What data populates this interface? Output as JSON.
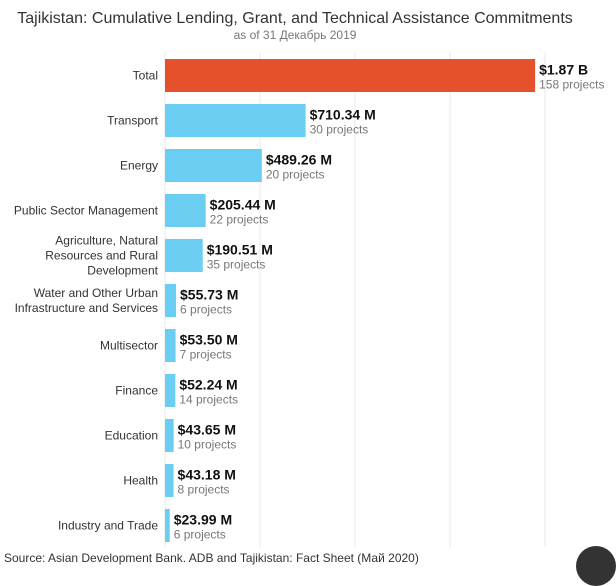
{
  "chart_data": {
    "type": "bar",
    "orientation": "horizontal",
    "title": "Tajikistan: Cumulative Lending, Grant, and Technical Assistance Commitments",
    "subtitle": "as of 31 Декабрь 2019",
    "units": "USD millions",
    "xlim": [
      0,
      1920
    ],
    "grid": true,
    "categories": [
      "Total",
      "Transport",
      "Energy",
      "Public Sector Management",
      "Agriculture, Natural Resources and Rural Development",
      "Water and Other Urban Infrastructure and Services",
      "Multisector",
      "Finance",
      "Education",
      "Health",
      "Industry and Trade"
    ],
    "values": [
      1870,
      710.34,
      489.26,
      205.44,
      190.51,
      55.73,
      53.5,
      52.24,
      43.65,
      43.18,
      23.99
    ],
    "value_labels": [
      "$1.87 B",
      "$710.34 M",
      "$489.26 M",
      "$205.44 M",
      "$190.51 M",
      "$55.73 M",
      "$53.50 M",
      "$52.24 M",
      "$43.65 M",
      "$43.18 M",
      "$23.99 M"
    ],
    "project_labels": [
      "158 projects",
      "30 projects",
      "20 projects",
      "22 projects",
      "35 projects",
      "6 projects",
      "7 projects",
      "14 projects",
      "10 projects",
      "8 projects",
      "6 projects"
    ],
    "colors": {
      "total": "#e5512b",
      "sector": "#6ccdf2",
      "grid": "#e8e8e8"
    }
  },
  "source": "Source: Asian Development Bank. ADB and Tajikistan: Fact Sheet (Май 2020)"
}
